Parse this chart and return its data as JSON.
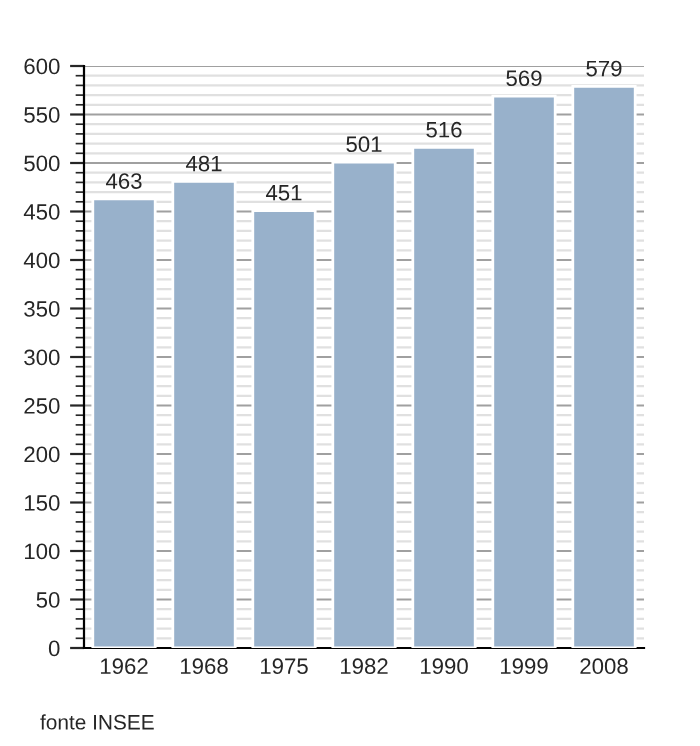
{
  "chart_data": {
    "type": "bar",
    "categories": [
      "1962",
      "1968",
      "1975",
      "1982",
      "1990",
      "1999",
      "2008"
    ],
    "values": [
      463,
      481,
      451,
      501,
      516,
      569,
      579
    ],
    "color": "#98b1cb",
    "data_labels": true,
    "ylim": [
      0,
      600
    ],
    "yticks": [
      0,
      50,
      100,
      150,
      200,
      250,
      300,
      350,
      400,
      450,
      500,
      550,
      600
    ],
    "grid": "y",
    "annotations": [
      "fonte INSEE"
    ]
  }
}
